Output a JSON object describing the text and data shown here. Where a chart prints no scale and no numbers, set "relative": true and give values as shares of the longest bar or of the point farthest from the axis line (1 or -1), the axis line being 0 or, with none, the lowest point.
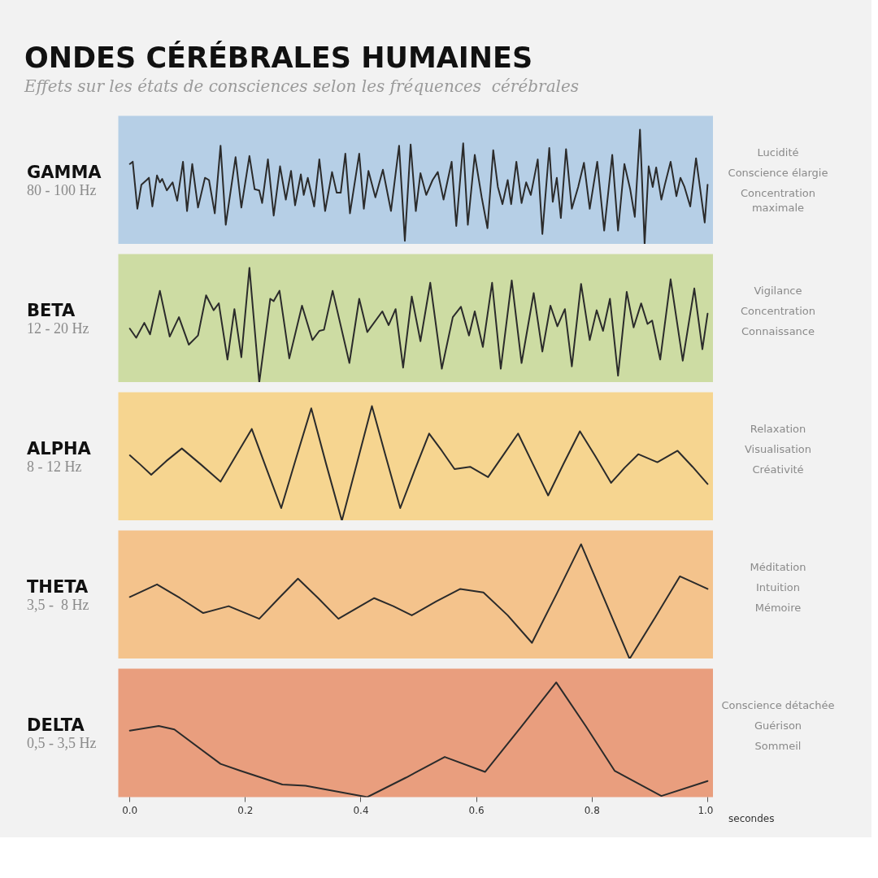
{
  "chart_data": [
    {
      "type": "other",
      "title": "ONDES CÉRÉBRALES HUMAINES",
      "subtitle": "Effets sur les états de consciences selon les fréquences  cérébrales"
    },
    {
      "type": "line",
      "title": "GAMMA",
      "subtitle": "80 - 100 Hz",
      "relative": true,
      "tick_labels": false,
      "xlim": [
        -0.02,
        1.01
      ],
      "annotations": [
        "Lucidité",
        "Conscience élargie",
        "Concentration maximale"
      ],
      "x": [
        0,
        0.005,
        0.013,
        0.02,
        0.029,
        0.033,
        0.039,
        0.047,
        0.052,
        0.056,
        0.064,
        0.074,
        0.082,
        0.092,
        0.099,
        0.108,
        0.118,
        0.13,
        0.137,
        0.147,
        0.157,
        0.166,
        0.183,
        0.193,
        0.207,
        0.216,
        0.224,
        0.229,
        0.239,
        0.249,
        0.26,
        0.27,
        0.279,
        0.286,
        0.296,
        0.301,
        0.308,
        0.319,
        0.328,
        0.338,
        0.35,
        0.358,
        0.365,
        0.373,
        0.381,
        0.397,
        0.405,
        0.413,
        0.425,
        0.438,
        0.452,
        0.466,
        0.476,
        0.486,
        0.495,
        0.503,
        0.513,
        0.524,
        0.533,
        0.543,
        0.557,
        0.565,
        0.577,
        0.585,
        0.597,
        0.609,
        0.619,
        0.629,
        0.637,
        0.645,
        0.654,
        0.66,
        0.669,
        0.678,
        0.686,
        0.694,
        0.706,
        0.714,
        0.726,
        0.732,
        0.739,
        0.746,
        0.755,
        0.765,
        0.776,
        0.786,
        0.796,
        0.809,
        0.821,
        0.835,
        0.845,
        0.856,
        0.866,
        0.874,
        0.883,
        0.891,
        0.898,
        0.905,
        0.911,
        0.92,
        0.926,
        0.936,
        0.946,
        0.953,
        0.96,
        0.97,
        0.98,
        0.995,
        1.0
      ],
      "series": [
        {
          "color": "#2b2b2b",
          "values": [
            0.7,
            0.72,
            0.31,
            0.52,
            0.56,
            0.58,
            0.33,
            0.6,
            0.54,
            0.57,
            0.47,
            0.54,
            0.38,
            0.72,
            0.29,
            0.7,
            0.32,
            0.58,
            0.56,
            0.27,
            0.86,
            0.17,
            0.76,
            0.32,
            0.77,
            0.48,
            0.47,
            0.36,
            0.74,
            0.25,
            0.68,
            0.39,
            0.64,
            0.34,
            0.61,
            0.43,
            0.58,
            0.33,
            0.74,
            0.29,
            0.63,
            0.45,
            0.45,
            0.79,
            0.27,
            0.79,
            0.31,
            0.64,
            0.41,
            0.65,
            0.29,
            0.86,
            0.03,
            0.87,
            0.29,
            0.62,
            0.43,
            0.56,
            0.63,
            0.39,
            0.72,
            0.16,
            0.88,
            0.17,
            0.78,
            0.41,
            0.14,
            0.82,
            0.5,
            0.35,
            0.56,
            0.35,
            0.72,
            0.36,
            0.54,
            0.43,
            0.74,
            0.09,
            0.84,
            0.37,
            0.58,
            0.23,
            0.83,
            0.31,
            0.5,
            0.71,
            0.31,
            0.72,
            0.12,
            0.78,
            0.12,
            0.7,
            0.48,
            0.24,
            1.0,
            0,
            0.68,
            0.5,
            0.67,
            0.39,
            0.52,
            0.72,
            0.42,
            0.58,
            0.5,
            0.33,
            0.75,
            0.19,
            0.52
          ]
        }
      ]
    },
    {
      "type": "line",
      "title": "BETA",
      "subtitle": "12 - 20 Hz",
      "relative": true,
      "tick_labels": false,
      "xlim": [
        -0.02,
        1.01
      ],
      "annotations": [
        "Vigilance",
        "Concentration",
        "Connaissance"
      ],
      "x": [
        0,
        0.011,
        0.025,
        0.035,
        0.052,
        0.069,
        0.085,
        0.102,
        0.118,
        0.132,
        0.145,
        0.154,
        0.169,
        0.181,
        0.193,
        0.207,
        0.224,
        0.243,
        0.249,
        0.259,
        0.276,
        0.298,
        0.316,
        0.328,
        0.336,
        0.351,
        0.38,
        0.397,
        0.411,
        0.437,
        0.448,
        0.46,
        0.473,
        0.488,
        0.503,
        0.52,
        0.54,
        0.559,
        0.573,
        0.587,
        0.597,
        0.611,
        0.627,
        0.642,
        0.661,
        0.678,
        0.699,
        0.714,
        0.728,
        0.74,
        0.753,
        0.765,
        0.781,
        0.796,
        0.808,
        0.819,
        0.831,
        0.845,
        0.86,
        0.872,
        0.885,
        0.896,
        0.904,
        0.918,
        0.936,
        0.957,
        0.977,
        0.991,
        1.0
      ],
      "series": [
        {
          "color": "#2b2b2b",
          "values": [
            0.47,
            0.39,
            0.52,
            0.42,
            0.8,
            0.4,
            0.57,
            0.33,
            0.41,
            0.76,
            0.63,
            0.69,
            0.2,
            0.64,
            0.22,
            1.0,
            0,
            0.73,
            0.71,
            0.8,
            0.21,
            0.67,
            0.37,
            0.45,
            0.46,
            0.8,
            0.17,
            0.73,
            0.44,
            0.62,
            0.5,
            0.64,
            0.13,
            0.75,
            0.36,
            0.87,
            0.12,
            0.57,
            0.66,
            0.41,
            0.62,
            0.31,
            0.87,
            0.12,
            0.89,
            0.17,
            0.78,
            0.27,
            0.67,
            0.49,
            0.64,
            0.14,
            0.86,
            0.37,
            0.63,
            0.45,
            0.73,
            0.06,
            0.79,
            0.48,
            0.69,
            0.51,
            0.54,
            0.2,
            0.9,
            0.19,
            0.82,
            0.29,
            0.6
          ]
        }
      ]
    },
    {
      "type": "line",
      "title": "ALPHA",
      "subtitle": "8 - 12 Hz",
      "relative": true,
      "tick_labels": false,
      "xlim": [
        -0.02,
        1.01
      ],
      "annotations": [
        "Relaxation",
        "Visualisation",
        "Créativité"
      ],
      "x": [
        0,
        0.018,
        0.037,
        0.063,
        0.09,
        0.123,
        0.157,
        0.184,
        0.211,
        0.236,
        0.262,
        0.288,
        0.314,
        0.34,
        0.367,
        0.393,
        0.419,
        0.443,
        0.468,
        0.493,
        0.518,
        0.54,
        0.562,
        0.589,
        0.62,
        0.646,
        0.672,
        0.698,
        0.724,
        0.751,
        0.779,
        0.806,
        0.833,
        0.856,
        0.88,
        0.913,
        0.948,
        0.974,
        1.0
      ],
      "series": [
        {
          "color": "#2b2b2b",
          "values": [
            0.57,
            0.49,
            0.4,
            0.52,
            0.63,
            0.49,
            0.34,
            0.57,
            0.8,
            0.46,
            0.11,
            0.55,
            0.98,
            0.49,
            0,
            0.5,
            1,
            0.56,
            0.11,
            0.44,
            0.76,
            0.61,
            0.45,
            0.47,
            0.38,
            0.57,
            0.76,
            0.49,
            0.22,
            0.5,
            0.78,
            0.56,
            0.33,
            0.46,
            0.58,
            0.51,
            0.61,
            0.47,
            0.32
          ]
        }
      ]
    },
    {
      "type": "line",
      "title": "THETA",
      "subtitle": "3,5 -  8 Hz",
      "relative": true,
      "tick_labels": false,
      "xlim": [
        -0.02,
        1.01
      ],
      "annotations": [
        "Méditation",
        "Intuition",
        "Mémoire"
      ],
      "x": [
        0,
        0.047,
        0.087,
        0.127,
        0.171,
        0.224,
        0.258,
        0.291,
        0.326,
        0.361,
        0.392,
        0.423,
        0.456,
        0.488,
        0.53,
        0.572,
        0.612,
        0.654,
        0.696,
        0.739,
        0.781,
        0.823,
        0.865,
        0.909,
        0.952,
        1.0
      ],
      "series": [
        {
          "color": "#2b2b2b",
          "values": [
            0.54,
            0.65,
            0.53,
            0.4,
            0.46,
            0.35,
            0.53,
            0.7,
            0.53,
            0.35,
            0.44,
            0.53,
            0.46,
            0.38,
            0.5,
            0.61,
            0.58,
            0.38,
            0.14,
            0.57,
            1,
            0.5,
            0,
            0.36,
            0.72,
            0.61
          ]
        }
      ]
    },
    {
      "type": "line",
      "title": "DELTA",
      "subtitle": "0,5 - 3,5 Hz",
      "relative": true,
      "tick_labels": "x",
      "xlim": [
        -0.02,
        1.01
      ],
      "xticks": [
        {
          "value": 0,
          "label": "0.0"
        },
        0.2,
        0.4,
        0.6,
        0.8,
        {
          "value": 1,
          "label": "1.0"
        }
      ],
      "xlabel": "secondes",
      "annotations": [
        "Conscience détachée",
        "Guérison",
        "Sommeil"
      ],
      "x": [
        0,
        0.05,
        0.077,
        0.157,
        0.191,
        0.264,
        0.304,
        0.411,
        0.478,
        0.545,
        0.615,
        0.677,
        0.738,
        0.789,
        0.839,
        0.92,
        1.0
      ],
      "series": [
        {
          "color": "#2b2b2b",
          "values": [
            0.58,
            0.62,
            0.59,
            0.29,
            0.23,
            0.11,
            0.1,
            0,
            0.17,
            0.35,
            0.22,
            0.61,
            1,
            0.62,
            0.23,
            0.01,
            0.14
          ]
        }
      ]
    }
  ]
}
